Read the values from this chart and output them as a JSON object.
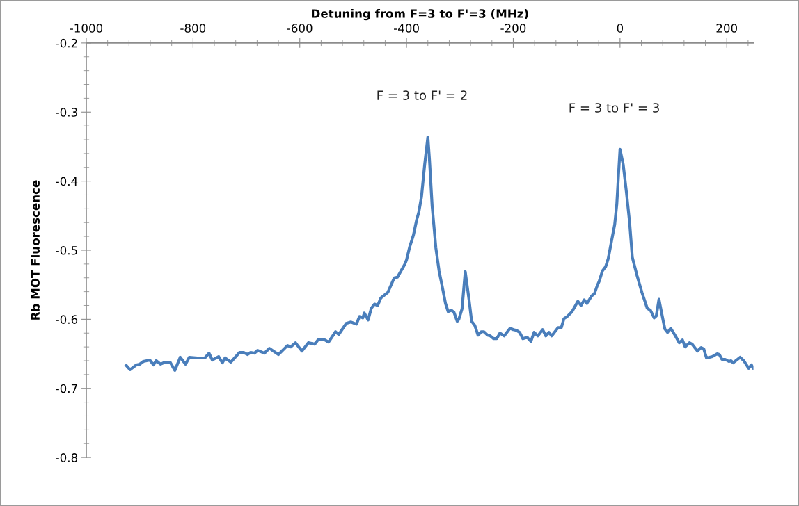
{
  "chart_data": {
    "type": "line",
    "xlabel": "Detuning from F=3 to F'=3 (MHz)",
    "ylabel": "Rb MOT Fluorescence",
    "xlim": [
      -1000,
      250
    ],
    "xticks": [
      -1000,
      -800,
      -600,
      -400,
      -200,
      0,
      200
    ],
    "ylim": [
      -0.8,
      -0.2
    ],
    "yticks": [
      -0.8,
      -0.7,
      -0.6,
      -0.5,
      -0.4,
      -0.3,
      -0.2
    ],
    "grid": false,
    "marker": "none",
    "line_style": "solid",
    "annotations": [
      {
        "text": "F = 3 to F' = 2",
        "x": -360,
        "y": -0.336
      },
      {
        "text": "F = 3 to F' = 3",
        "x": 0,
        "y": -0.354
      }
    ],
    "series": [
      {
        "color": "#4a7ebb",
        "x": [
          -925,
          -918,
          -906,
          -900,
          -893,
          -881,
          -874,
          -869,
          -861,
          -852,
          -843,
          -834,
          -824,
          -814,
          -807,
          -792,
          -778,
          -770,
          -764,
          -752,
          -745,
          -740,
          -729,
          -713,
          -705,
          -698,
          -692,
          -685,
          -679,
          -666,
          -657,
          -640,
          -623,
          -617,
          -608,
          -596,
          -584,
          -572,
          -566,
          -555,
          -546,
          -533,
          -527,
          -513,
          -504,
          -494,
          -488,
          -482,
          -479,
          -472,
          -466,
          -460,
          -454,
          -448,
          -435,
          -423,
          -417,
          -403,
          -400,
          -394,
          -387,
          -381,
          -377,
          -372,
          -366,
          -360,
          -357,
          -352,
          -345,
          -339,
          -333,
          -327,
          -322,
          -316,
          -311,
          -305,
          -302,
          -296,
          -290,
          -283,
          -278,
          -272,
          -266,
          -260,
          -255,
          -248,
          -243,
          -237,
          -231,
          -225,
          -217,
          -206,
          -200,
          -194,
          -188,
          -182,
          -174,
          -167,
          -161,
          -154,
          -145,
          -139,
          -133,
          -128,
          -116,
          -110,
          -105,
          -99,
          -90,
          -79,
          -73,
          -67,
          -62,
          -53,
          -48,
          -43,
          -39,
          -33,
          -27,
          -22,
          -16,
          -10,
          -6,
          -3,
          0,
          6,
          12,
          18,
          23,
          32,
          41,
          51,
          57,
          64,
          68,
          73,
          78,
          84,
          89,
          95,
          103,
          111,
          117,
          122,
          130,
          135,
          145,
          152,
          157,
          162,
          173,
          182,
          186,
          191,
          197,
          204,
          208,
          212,
          225,
          232,
          241,
          246,
          250
        ],
        "values": [
          -0.667,
          -0.673,
          -0.666,
          -0.665,
          -0.661,
          -0.659,
          -0.666,
          -0.66,
          -0.665,
          -0.662,
          -0.662,
          -0.674,
          -0.655,
          -0.665,
          -0.655,
          -0.656,
          -0.656,
          -0.649,
          -0.659,
          -0.654,
          -0.663,
          -0.656,
          -0.662,
          -0.648,
          -0.648,
          -0.651,
          -0.648,
          -0.649,
          -0.645,
          -0.649,
          -0.642,
          -0.651,
          -0.638,
          -0.64,
          -0.634,
          -0.646,
          -0.634,
          -0.636,
          -0.63,
          -0.629,
          -0.633,
          -0.618,
          -0.622,
          -0.606,
          -0.604,
          -0.607,
          -0.596,
          -0.598,
          -0.591,
          -0.601,
          -0.584,
          -0.578,
          -0.58,
          -0.569,
          -0.561,
          -0.54,
          -0.539,
          -0.52,
          -0.514,
          -0.495,
          -0.478,
          -0.456,
          -0.445,
          -0.423,
          -0.376,
          -0.336,
          -0.369,
          -0.436,
          -0.497,
          -0.53,
          -0.553,
          -0.577,
          -0.589,
          -0.587,
          -0.59,
          -0.603,
          -0.6,
          -0.585,
          -0.531,
          -0.571,
          -0.603,
          -0.609,
          -0.623,
          -0.618,
          -0.618,
          -0.623,
          -0.624,
          -0.628,
          -0.628,
          -0.62,
          -0.624,
          -0.613,
          -0.615,
          -0.616,
          -0.619,
          -0.628,
          -0.626,
          -0.632,
          -0.619,
          -0.624,
          -0.615,
          -0.624,
          -0.619,
          -0.624,
          -0.612,
          -0.612,
          -0.599,
          -0.596,
          -0.589,
          -0.574,
          -0.58,
          -0.572,
          -0.577,
          -0.566,
          -0.563,
          -0.552,
          -0.545,
          -0.53,
          -0.524,
          -0.512,
          -0.487,
          -0.463,
          -0.433,
          -0.393,
          -0.354,
          -0.376,
          -0.416,
          -0.46,
          -0.51,
          -0.537,
          -0.561,
          -0.584,
          -0.587,
          -0.598,
          -0.595,
          -0.571,
          -0.591,
          -0.614,
          -0.619,
          -0.613,
          -0.623,
          -0.634,
          -0.63,
          -0.64,
          -0.634,
          -0.636,
          -0.646,
          -0.641,
          -0.643,
          -0.656,
          -0.654,
          -0.65,
          -0.651,
          -0.658,
          -0.658,
          -0.661,
          -0.66,
          -0.663,
          -0.655,
          -0.66,
          -0.671,
          -0.666,
          -0.671
        ]
      }
    ]
  }
}
